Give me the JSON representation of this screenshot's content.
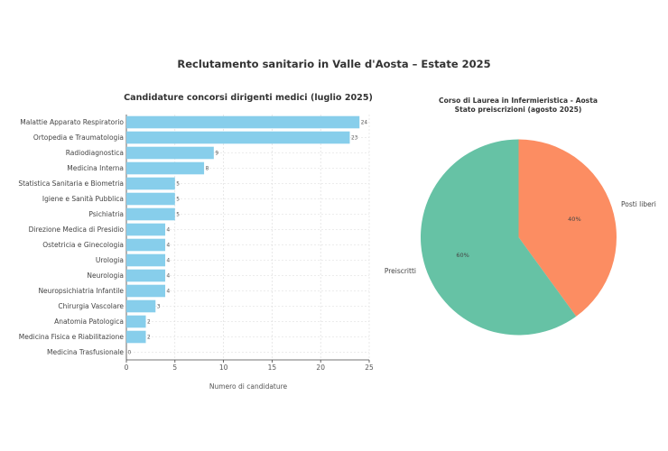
{
  "figure_title": "Reclutamento sanitario in Valle d'Aosta – Estate 2025",
  "chart_data": [
    {
      "type": "bar",
      "orientation": "horizontal",
      "title": "Candidature concorsi dirigenti medici (luglio 2025)",
      "xlabel": "Numero di candidature",
      "ylabel": "",
      "xlim": [
        0,
        25
      ],
      "xticks": [
        "0",
        "5",
        "10",
        "15",
        "20",
        "25"
      ],
      "grid": true,
      "bar_color": "#87ceeb",
      "categories": [
        "Malattie Apparato Respiratorio",
        "Ortopedia e Traumatologia",
        "Radiodiagnostica",
        "Medicina Interna",
        "Statistica Sanitaria e Biometria",
        "Igiene e Sanità Pubblica",
        "Psichiatria",
        "Direzione Medica di Presidio",
        "Ostetricia e Ginecologia",
        "Urologia",
        "Neurologia",
        "Neuropsichiatria Infantile",
        "Chirurgia Vascolare",
        "Anatomia Patologica",
        "Medicina Fisica e Riabilitazione",
        "Medicina Trasfusionale"
      ],
      "values": [
        24,
        23,
        9,
        8,
        5,
        5,
        5,
        4,
        4,
        4,
        4,
        4,
        3,
        2,
        2,
        0
      ],
      "value_labels": [
        "24",
        "23",
        "9",
        "8",
        "5",
        "5",
        "5",
        "4",
        "4",
        "4",
        "4",
        "4",
        "3",
        "2",
        "2",
        "0"
      ]
    },
    {
      "type": "pie",
      "title_lines": [
        "Corso di Laurea in Infermieristica - Aosta",
        "Stato preiscrizioni (agosto 2025)"
      ],
      "slices": [
        {
          "label": "Posti liberi",
          "value": 40,
          "pct_label": "40%",
          "color": "#fc8d62"
        },
        {
          "label": "Preiscritti",
          "value": 60,
          "pct_label": "60%",
          "color": "#66c2a5"
        }
      ]
    }
  ]
}
